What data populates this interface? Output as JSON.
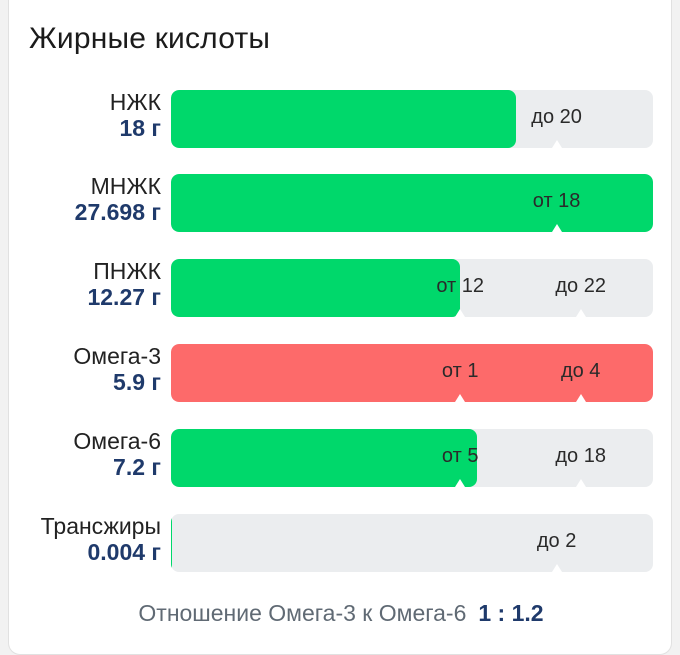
{
  "title": "Жирные кислоты",
  "colors": {
    "ok": "#00d86b",
    "warn": "#fd6a6a",
    "track": "#ebedef"
  },
  "rows": [
    {
      "name": "НЖК",
      "amount": "18 г",
      "status": "ok",
      "fill": 0.715,
      "markers": [
        {
          "text": "до 20",
          "pos": 0.8
        }
      ]
    },
    {
      "name": "МНЖК",
      "amount": "27.698 г",
      "status": "ok",
      "fill": 1.0,
      "markers": [
        {
          "text": "от 18",
          "pos": 0.8
        }
      ]
    },
    {
      "name": "ПНЖК",
      "amount": "12.27 г",
      "status": "ok",
      "fill": 0.6,
      "markers": [
        {
          "text": "от 12",
          "pos": 0.6
        },
        {
          "text": "до 22",
          "pos": 0.85
        }
      ]
    },
    {
      "name": "Омега-3",
      "amount": "5.9 г",
      "status": "warn",
      "fill": 1.0,
      "markers": [
        {
          "text": "от 1",
          "pos": 0.6
        },
        {
          "text": "до 4",
          "pos": 0.85
        }
      ]
    },
    {
      "name": "Омега-6",
      "amount": "7.2 г",
      "status": "ok",
      "fill": 0.635,
      "markers": [
        {
          "text": "от 5",
          "pos": 0.6
        },
        {
          "text": "до 18",
          "pos": 0.85
        }
      ]
    },
    {
      "name": "Трансжиры",
      "amount": "0.004 г",
      "status": "ok",
      "fill": 0.003,
      "markers": [
        {
          "text": "до 2",
          "pos": 0.8
        }
      ]
    }
  ],
  "ratio": {
    "label": "Отношение Омега-3 к Омега-6",
    "value": "1 : 1.2"
  }
}
